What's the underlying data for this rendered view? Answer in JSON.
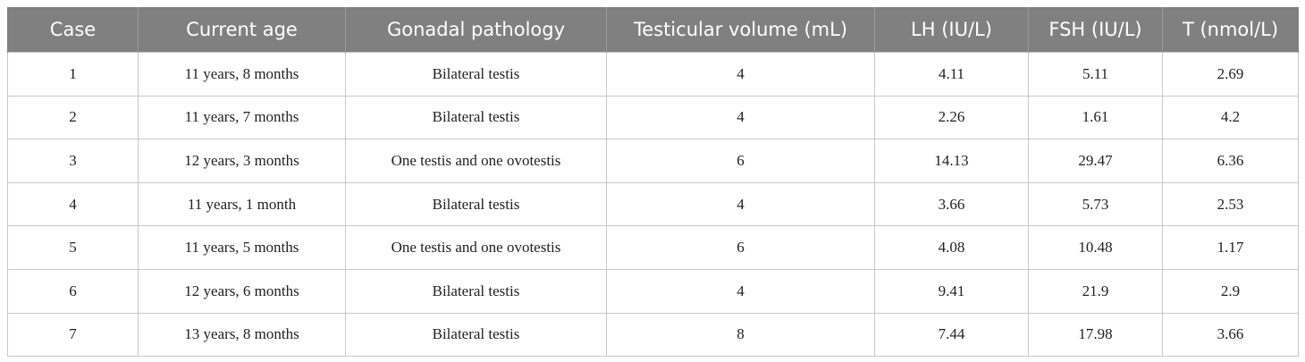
{
  "table": {
    "headers": [
      "Case",
      "Current age",
      "Gonadal pathology",
      "Testicular volume (mL)",
      "LH (IU/L)",
      "FSH (IU/L)",
      "T (nmol/L)"
    ],
    "rows": [
      [
        "1",
        "11 years, 8 months",
        "Bilateral testis",
        "4",
        "4.11",
        "5.11",
        "2.69"
      ],
      [
        "2",
        "11 years, 7 months",
        "Bilateral testis",
        "4",
        "2.26",
        "1.61",
        "4.2"
      ],
      [
        "3",
        "12 years, 3 months",
        "One testis and one ovotestis",
        "6",
        "14.13",
        "29.47",
        "6.36"
      ],
      [
        "4",
        "11 years, 1 month",
        "Bilateral testis",
        "4",
        "3.66",
        "5.73",
        "2.53"
      ],
      [
        "5",
        "11 years, 5 months",
        "One testis and one ovotestis",
        "6",
        "4.08",
        "10.48",
        "1.17"
      ],
      [
        "6",
        "12 years, 6 months",
        "Bilateral testis",
        "4",
        "9.41",
        "21.9",
        "2.9"
      ],
      [
        "7",
        "13 years, 8 months",
        "Bilateral testis",
        "8",
        "7.44",
        "17.98",
        "3.66"
      ]
    ]
  },
  "colors": {
    "header_bg": "#808080",
    "header_text": "#ffffff",
    "grid": "#c8c8c8"
  }
}
